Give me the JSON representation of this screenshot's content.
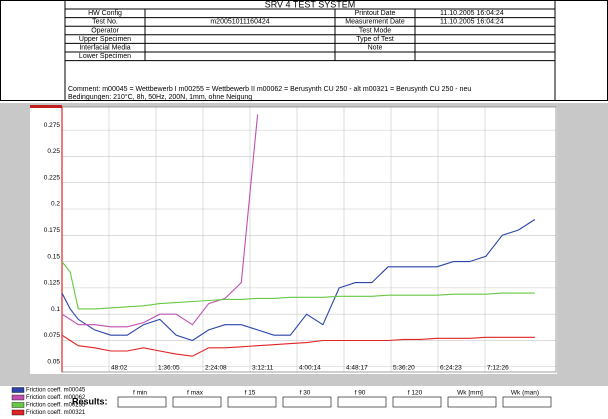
{
  "header": {
    "title": "SRV 4 TEST SYSTEM",
    "rows": [
      {
        "label": "HW Config",
        "label2": "Printout Date",
        "value2": "11.10.2005  16:04:24"
      },
      {
        "label": "Test No.",
        "value": "m20051011160424",
        "label2": "Measurement Date",
        "value2": "11.10.2005  16:04:24"
      },
      {
        "label": "Operator",
        "label2": "Test Mode"
      },
      {
        "label": "Upper Specimen",
        "label2": "Type of Test"
      },
      {
        "label": "Interfacial Media",
        "label2": "Note"
      },
      {
        "label": "Lower Specimen"
      }
    ],
    "comment": "Comment:  m00045 = Wettbewerb I     m00255 = Wettbewerb II     m00062 = Berusynth CU 250 - alt     m00321 = Berusynth CU 250 - neu",
    "conditions": "Bedingungen: 210°C, 8h, 50Hz, 200N, 1mm, ohne Neigung"
  },
  "chart_data": {
    "type": "line",
    "grid": true,
    "x": [
      0,
      500,
      1000,
      2000,
      3000,
      4000,
      5000,
      6000,
      7000,
      8000,
      9000,
      10000,
      11000,
      12000,
      13000,
      14000,
      15000,
      16000,
      17000,
      18000,
      19000,
      20000,
      21000,
      22000,
      23000,
      24000,
      25000,
      26000,
      27000,
      28000,
      29000
    ],
    "xlim": [
      0,
      30300
    ],
    "xticks": [
      {
        "value": 2882,
        "label": "48:02"
      },
      {
        "value": 5765,
        "label": "1:36:05"
      },
      {
        "value": 8648,
        "label": "2:24:08"
      },
      {
        "value": 11531,
        "label": "3:12:11"
      },
      {
        "value": 14414,
        "label": "4:00:14"
      },
      {
        "value": 17297,
        "label": "4:48:17"
      },
      {
        "value": 20180,
        "label": "5:36:20"
      },
      {
        "value": 23063,
        "label": "6:24:23"
      },
      {
        "value": 25946,
        "label": "7:12:26"
      }
    ],
    "ylim": [
      0.045,
      0.297
    ],
    "yticks": [
      0.05,
      0.075,
      0.1,
      0.125,
      0.15,
      0.175,
      0.2,
      0.225,
      0.25,
      0.275
    ],
    "series": [
      {
        "name": "Friction coeff. m00045",
        "color": "#2a44a8",
        "values": [
          0.12,
          0.105,
          0.095,
          0.085,
          0.08,
          0.08,
          0.09,
          0.095,
          0.08,
          0.075,
          0.085,
          0.09,
          0.09,
          0.085,
          0.08,
          0.08,
          0.1,
          0.09,
          0.125,
          0.13,
          0.13,
          0.145,
          0.145,
          0.145,
          0.145,
          0.15,
          0.15,
          0.155,
          0.175,
          0.18,
          0.19
        ]
      },
      {
        "name": "Friction coeff. m00062",
        "color": "#c050b0",
        "values": [
          0.1,
          0.095,
          0.09,
          0.09,
          0.088,
          0.088,
          0.092,
          0.1,
          0.1,
          0.09,
          0.11,
          0.115,
          0.13,
          0.29,
          null,
          null,
          null,
          null,
          null,
          null,
          null,
          null,
          null,
          null,
          null,
          null,
          null,
          null,
          null,
          null,
          null
        ]
      },
      {
        "name": "Friction coeff. m00255",
        "color": "#66c844",
        "values": [
          0.15,
          0.14,
          0.105,
          0.105,
          0.106,
          0.107,
          0.108,
          0.11,
          0.111,
          0.112,
          0.113,
          0.114,
          0.114,
          0.115,
          0.115,
          0.116,
          0.116,
          0.116,
          0.117,
          0.117,
          0.117,
          0.118,
          0.118,
          0.118,
          0.118,
          0.119,
          0.119,
          0.119,
          0.12,
          0.12,
          0.12
        ]
      },
      {
        "name": "Friction coeff. m00321",
        "color": "#e02424",
        "values": [
          0.08,
          0.075,
          0.07,
          0.068,
          0.065,
          0.065,
          0.068,
          0.065,
          0.062,
          0.06,
          0.068,
          0.068,
          0.069,
          0.07,
          0.071,
          0.072,
          0.073,
          0.075,
          0.075,
          0.075,
          0.075,
          0.075,
          0.076,
          0.076,
          0.077,
          0.077,
          0.077,
          0.078,
          0.078,
          0.078,
          0.078
        ]
      }
    ]
  },
  "results": {
    "title": "Results:",
    "fields": [
      "f min",
      "f max",
      "f 15",
      "f 30",
      "f 90",
      "f 120",
      "Wk [mm]",
      "Wk (man)"
    ]
  }
}
